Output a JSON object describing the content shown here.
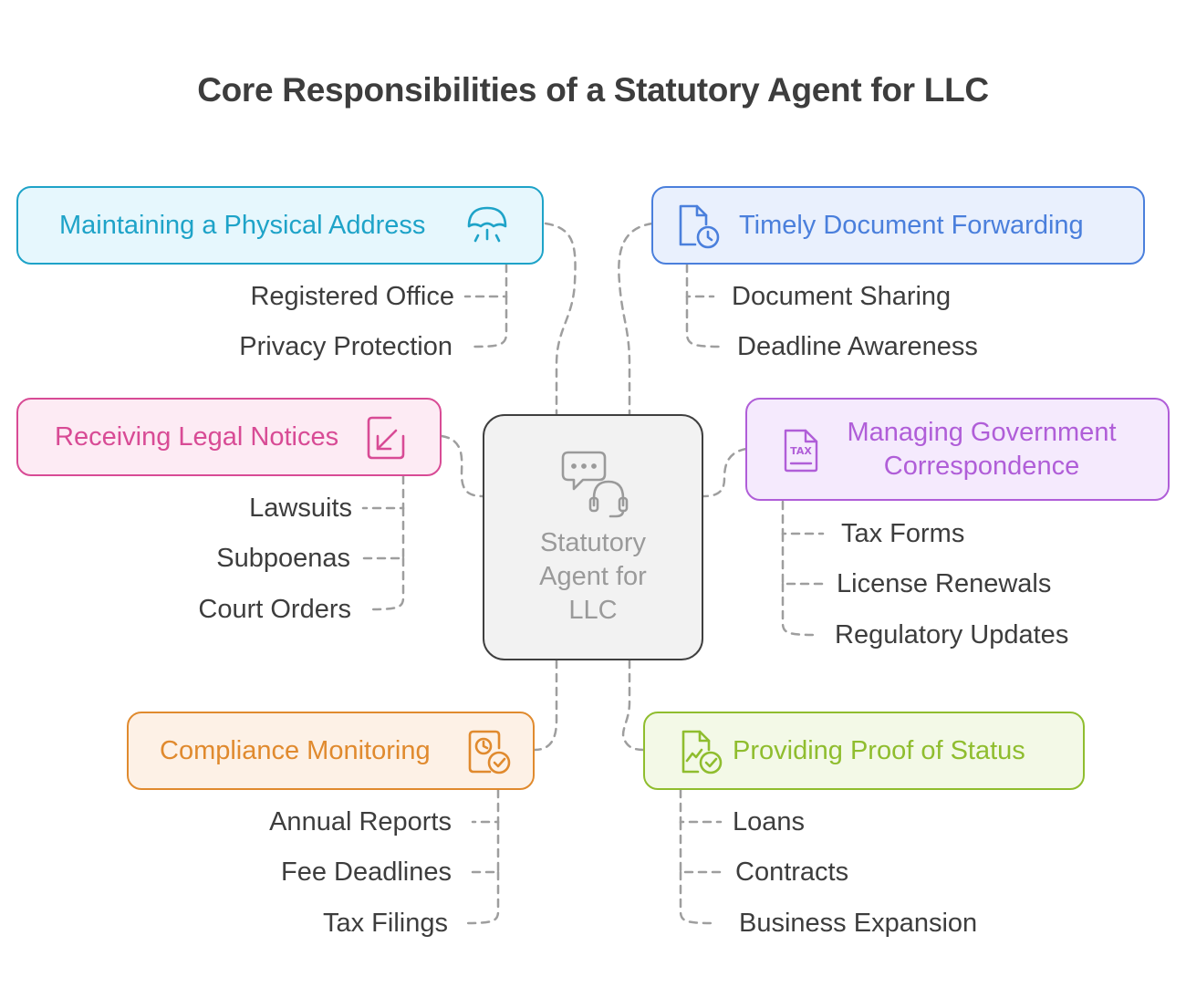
{
  "title": "Core Responsibilities of a Statutory Agent for LLC",
  "center": {
    "label": "Statutory Agent for LLC",
    "lines": [
      "Statutory",
      "Agent for",
      "LLC"
    ],
    "icon": "chat-support-icon"
  },
  "branches": [
    {
      "id": "physical-address",
      "label": "Maintaining a Physical Address",
      "icon": "umbrella-icon",
      "color": "#1ea3c8",
      "fill": "#e6f7fd",
      "items": [
        "Registered Office",
        "Privacy Protection"
      ]
    },
    {
      "id": "document-forwarding",
      "label": "Timely Document Forwarding",
      "icon": "document-clock-icon",
      "color": "#4a7fdc",
      "fill": "#e9f0fd",
      "items": [
        "Document Sharing",
        "Deadline Awareness"
      ]
    },
    {
      "id": "legal-notices",
      "label": "Receiving Legal Notices",
      "icon": "inbox-arrow-icon",
      "color": "#d84b95",
      "fill": "#fdebf4",
      "items": [
        "Lawsuits",
        "Subpoenas",
        "Court Orders"
      ]
    },
    {
      "id": "government-correspondence",
      "label": "Managing Government Correspondence",
      "lines": [
        "Managing Government",
        "Correspondence"
      ],
      "icon": "tax-document-icon",
      "color": "#b05ed8",
      "fill": "#f5eafd",
      "items": [
        "Tax Forms",
        "License Renewals",
        "Regulatory Updates"
      ]
    },
    {
      "id": "compliance-monitoring",
      "label": "Compliance Monitoring",
      "icon": "compliance-check-icon",
      "color": "#e08a2e",
      "fill": "#fdf1e6",
      "items": [
        "Annual Reports",
        "Fee Deadlines",
        "Tax Filings"
      ]
    },
    {
      "id": "proof-of-status",
      "label": "Providing Proof of Status",
      "icon": "chart-check-icon",
      "color": "#8fbd2e",
      "fill": "#f3f9e7",
      "items": [
        "Loans",
        "Contracts",
        "Business Expansion"
      ]
    }
  ]
}
